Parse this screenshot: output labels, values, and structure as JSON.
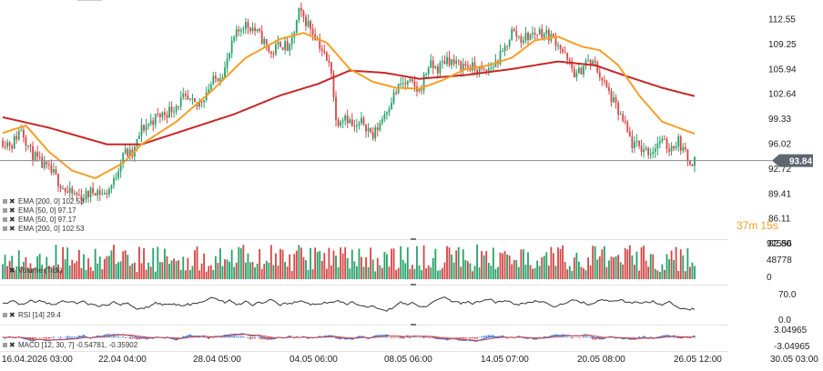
{
  "chart_data": {
    "type": "candlestick",
    "price_axis": {
      "ticks": [
        "112.55",
        "109.25",
        "105.94",
        "102.64",
        "99.33",
        "96.02",
        "92.72",
        "89.41",
        "86.11",
        "82.80"
      ],
      "range": [
        82.8,
        114.2
      ]
    },
    "current_price": {
      "label": "93.84",
      "value": 93.84
    },
    "countdown": {
      "minutes": "37m",
      "seconds": "15s"
    },
    "x_axis": {
      "ticks": [
        "16.04.2026 03:00",
        "22.04 04:00",
        "28.04 05:00",
        "04.05 06:00",
        "08.05 06:00",
        "14.05 07:00",
        "20.05 08:00",
        "26.05 12:00",
        "30.05 03:00"
      ]
    },
    "price_keypoints": [
      [
        0,
        96.5
      ],
      [
        4,
        96.0
      ],
      [
        8,
        98.2
      ],
      [
        12,
        95.0
      ],
      [
        16,
        93.5
      ],
      [
        22,
        92.0
      ],
      [
        28,
        89.5
      ],
      [
        35,
        89.0
      ],
      [
        40,
        90.0
      ],
      [
        44,
        89.3
      ],
      [
        48,
        91.0
      ],
      [
        52,
        95.0
      ],
      [
        56,
        94.5
      ],
      [
        60,
        98.0
      ],
      [
        66,
        99.5
      ],
      [
        72,
        100.5
      ],
      [
        78,
        102.0
      ],
      [
        84,
        101.0
      ],
      [
        90,
        104.0
      ],
      [
        96,
        106.0
      ],
      [
        100,
        110.0
      ],
      [
        104,
        112.0
      ],
      [
        108,
        111.5
      ],
      [
        112,
        110.0
      ],
      [
        116,
        108.0
      ],
      [
        120,
        109.5
      ],
      [
        124,
        108.5
      ],
      [
        128,
        113.5
      ],
      [
        132,
        112.0
      ],
      [
        136,
        110.0
      ],
      [
        140,
        107.0
      ],
      [
        142,
        106.0
      ],
      [
        144,
        99.0
      ],
      [
        148,
        100.0
      ],
      [
        152,
        98.0
      ],
      [
        156,
        99.0
      ],
      [
        160,
        97.0
      ],
      [
        164,
        99.5
      ],
      [
        168,
        102.0
      ],
      [
        172,
        104.0
      ],
      [
        176,
        104.0
      ],
      [
        180,
        103.0
      ],
      [
        184,
        106.5
      ],
      [
        188,
        106.0
      ],
      [
        192,
        107.5
      ],
      [
        196,
        106.5
      ],
      [
        200,
        106.5
      ],
      [
        204,
        106.0
      ],
      [
        208,
        105.5
      ],
      [
        212,
        106.5
      ],
      [
        216,
        108.0
      ],
      [
        220,
        111.0
      ],
      [
        224,
        110.0
      ],
      [
        228,
        110.5
      ],
      [
        232,
        111.0
      ],
      [
        236,
        110.5
      ],
      [
        240,
        109.5
      ],
      [
        244,
        107.0
      ],
      [
        248,
        105.0
      ],
      [
        252,
        107.0
      ],
      [
        256,
        106.5
      ],
      [
        260,
        104.0
      ],
      [
        264,
        101.5
      ],
      [
        268,
        99.0
      ],
      [
        272,
        96.0
      ],
      [
        276,
        95.5
      ],
      [
        280,
        95.0
      ],
      [
        284,
        96.5
      ],
      [
        288,
        95.5
      ],
      [
        292,
        96.5
      ],
      [
        296,
        94.0
      ],
      [
        299,
        93.84
      ]
    ],
    "ema_slow_points": [
      [
        0,
        99.6
      ],
      [
        20,
        98.2
      ],
      [
        45,
        96.0
      ],
      [
        60,
        96.0
      ],
      [
        80,
        98.0
      ],
      [
        100,
        100.0
      ],
      [
        120,
        102.5
      ],
      [
        136,
        104.0
      ],
      [
        150,
        105.8
      ],
      [
        165,
        105.5
      ],
      [
        180,
        104.7
      ],
      [
        200,
        105.2
      ],
      [
        220,
        106.0
      ],
      [
        240,
        107.0
      ],
      [
        256,
        106.5
      ],
      [
        270,
        105.0
      ],
      [
        285,
        103.5
      ],
      [
        299,
        102.4
      ]
    ],
    "ema_fast_points": [
      [
        0,
        97.5
      ],
      [
        10,
        98.5
      ],
      [
        20,
        95.0
      ],
      [
        30,
        92.5
      ],
      [
        40,
        91.5
      ],
      [
        52,
        93.5
      ],
      [
        60,
        96.0
      ],
      [
        75,
        99.0
      ],
      [
        90,
        103.0
      ],
      [
        105,
        107.5
      ],
      [
        120,
        110.0
      ],
      [
        130,
        110.8
      ],
      [
        140,
        109.5
      ],
      [
        150,
        106.0
      ],
      [
        160,
        104.3
      ],
      [
        170,
        103.5
      ],
      [
        180,
        103.4
      ],
      [
        190,
        104.5
      ],
      [
        200,
        106.0
      ],
      [
        210,
        106.5
      ],
      [
        220,
        107.5
      ],
      [
        230,
        109.8
      ],
      [
        240,
        110.3
      ],
      [
        250,
        109.0
      ],
      [
        258,
        108.5
      ],
      [
        266,
        106.5
      ],
      [
        275,
        102.5
      ],
      [
        285,
        99.0
      ],
      [
        299,
        97.4
      ]
    ],
    "volume_axis": {
      "ticks": [
        "97556",
        "48778",
        "0"
      ],
      "max": 97556
    },
    "rsi_axis": {
      "ticks": [
        "70.0",
        "0.0"
      ]
    },
    "macd_axis": {
      "ticks": [
        "3.04965",
        "-3.04965"
      ]
    },
    "indicators": [
      {
        "label": "EMA [200, 0] 102.53",
        "color": "#c62828"
      },
      {
        "label": "EMA [50, 0] 97.17",
        "color": "#f59f26"
      },
      {
        "label": "EMA [50, 0] 97.17",
        "color": "#f59f26"
      },
      {
        "label": "EMA [200, 0] 102.53",
        "color": "#c62828"
      }
    ],
    "volume_label": "Volume (Tick)",
    "rsi_label": "RSI [14] 29.4",
    "macd_label": "MACD [12, 30, 7] -0.54781, -0.35902",
    "colors": {
      "up": "#26a269",
      "down": "#d64545",
      "ema_fast": "#f59f26",
      "ema_slow": "#c62828",
      "price_line": "#8a8a8a",
      "price_tag": "#5f6670",
      "timer": "#f59f26"
    }
  }
}
